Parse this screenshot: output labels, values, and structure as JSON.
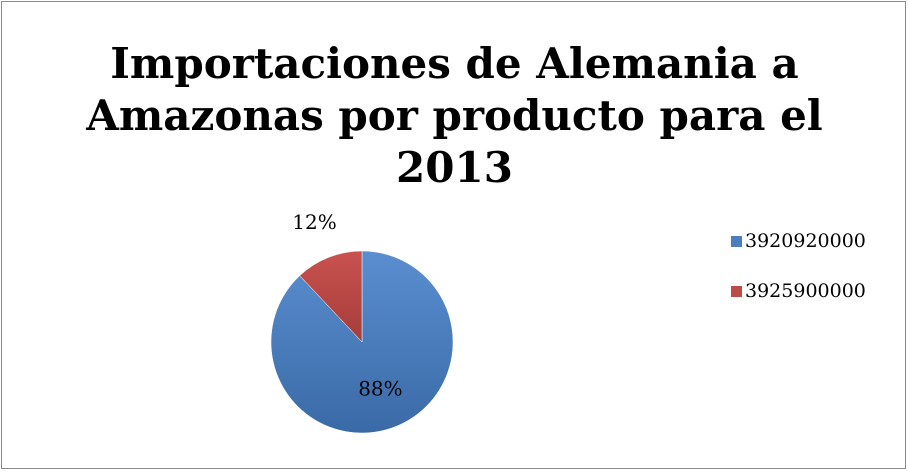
{
  "chart_data": {
    "type": "pie",
    "title_lines": [
      "Importaciones de Alemania a",
      "Amazonas por producto para el",
      "2013"
    ],
    "slices": [
      {
        "label": "3920920000",
        "value": 88,
        "display": "88%",
        "color": "#4a7ebf"
      },
      {
        "label": "3925900000",
        "value": 12,
        "display": "12%",
        "color": "#be4b48"
      }
    ],
    "legend_position": "right"
  }
}
